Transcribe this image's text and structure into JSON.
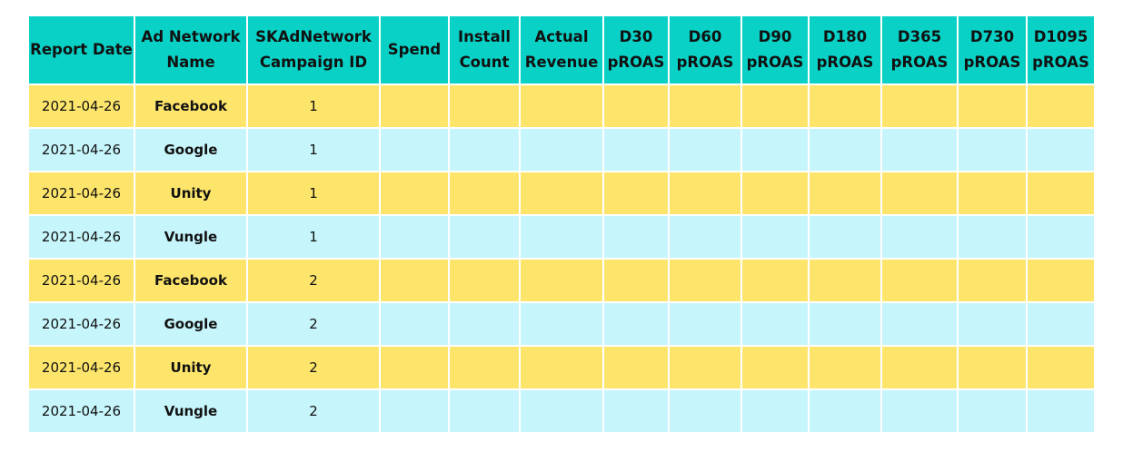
{
  "colors": {
    "header_bg": "#09d1c6",
    "row_odd_bg": "#fde56c",
    "row_even_bg": "#c6f5fb"
  },
  "table": {
    "headers": [
      [
        "Report Date"
      ],
      [
        "Ad Network",
        "Name"
      ],
      [
        "SKAdNetwork",
        "Campaign ID"
      ],
      [
        "Spend"
      ],
      [
        "Install",
        "Count"
      ],
      [
        "Actual",
        "Revenue"
      ],
      [
        "D30",
        "pROAS"
      ],
      [
        "D60",
        "pROAS"
      ],
      [
        "D90",
        "pROAS"
      ],
      [
        "D180",
        "pROAS"
      ],
      [
        "D365",
        "pROAS"
      ],
      [
        "D730",
        "pROAS"
      ],
      [
        "D1095",
        "pROAS"
      ]
    ],
    "rows": [
      {
        "date": "2021-04-26",
        "network": "Facebook",
        "campaign_id": "1"
      },
      {
        "date": "2021-04-26",
        "network": "Google",
        "campaign_id": "1"
      },
      {
        "date": "2021-04-26",
        "network": "Unity",
        "campaign_id": "1"
      },
      {
        "date": "2021-04-26",
        "network": "Vungle",
        "campaign_id": "1"
      },
      {
        "date": "2021-04-26",
        "network": "Facebook",
        "campaign_id": "2"
      },
      {
        "date": "2021-04-26",
        "network": "Google",
        "campaign_id": "2"
      },
      {
        "date": "2021-04-26",
        "network": "Unity",
        "campaign_id": "2"
      },
      {
        "date": "2021-04-26",
        "network": "Vungle",
        "campaign_id": "2"
      }
    ]
  }
}
